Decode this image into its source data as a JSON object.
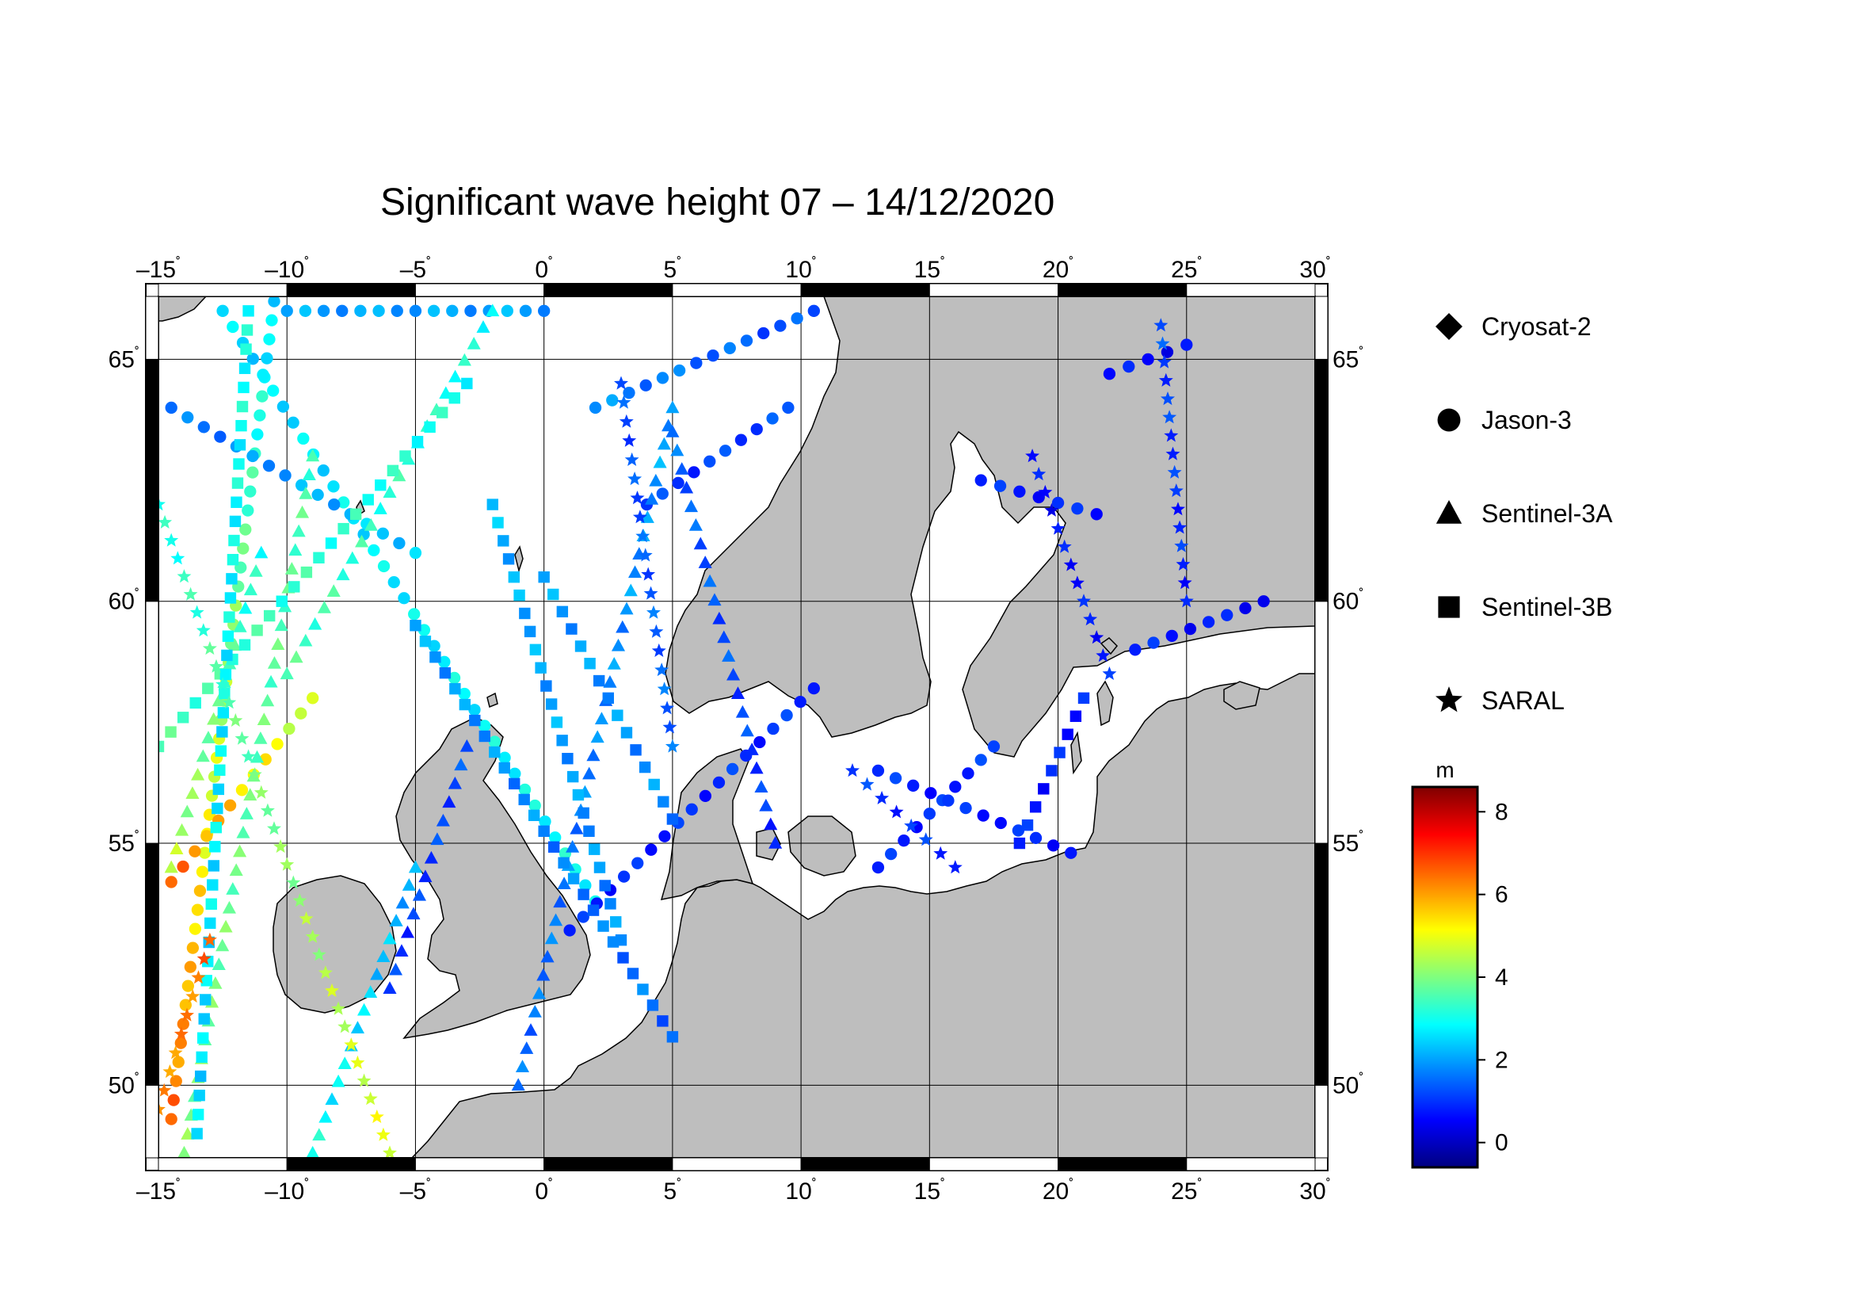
{
  "title": "Significant wave height 07 – 14/12/2020",
  "map": {
    "lon_range": [
      -15,
      30
    ],
    "lat_range": [
      48.5,
      66.3
    ],
    "lon_ticks": [
      {
        "value": -15,
        "label": "–15"
      },
      {
        "value": -10,
        "label": "–10"
      },
      {
        "value": -5,
        "label": "–5"
      },
      {
        "value": 0,
        "label": "0"
      },
      {
        "value": 5,
        "label": "5"
      },
      {
        "value": 10,
        "label": "10"
      },
      {
        "value": 15,
        "label": "15"
      },
      {
        "value": 20,
        "label": "20"
      },
      {
        "value": 25,
        "label": "25"
      },
      {
        "value": 30,
        "label": "30"
      }
    ],
    "lat_ticks": [
      {
        "value": 50,
        "label": "50"
      },
      {
        "value": 55,
        "label": "55"
      },
      {
        "value": 60,
        "label": "60"
      },
      {
        "value": 65,
        "label": "65"
      }
    ],
    "degree_symbol": "˚",
    "grid": true,
    "colors": {
      "land": "#bebebe",
      "sea": "#ffffff",
      "coast": "#000000",
      "frame": "#000000"
    }
  },
  "legend": {
    "items": [
      {
        "label": "Cryosat-2",
        "symbol": "diamond"
      },
      {
        "label": "Jason-3",
        "symbol": "circle"
      },
      {
        "label": "Sentinel-3A",
        "symbol": "triangle"
      },
      {
        "label": "Sentinel-3B",
        "symbol": "square"
      },
      {
        "label": "SARAL",
        "symbol": "star"
      }
    ]
  },
  "colorbar": {
    "unit": "m",
    "min": -0.6,
    "max": 8.6,
    "ticks": [
      {
        "value": 0,
        "label": "0"
      },
      {
        "value": 2,
        "label": "2"
      },
      {
        "value": 4,
        "label": "4"
      },
      {
        "value": 6,
        "label": "6"
      },
      {
        "value": 8,
        "label": "8"
      }
    ],
    "stops": [
      "#00007f",
      "#0000ff",
      "#007fff",
      "#00ffff",
      "#7fff7f",
      "#ffff00",
      "#ff7f00",
      "#ff0000",
      "#7f0000"
    ]
  },
  "tracks": [
    {
      "satellite": "Jason-3",
      "start": [
        -14.5,
        49.3
      ],
      "end": [
        -10.5,
        66.2
      ],
      "hs_start": 6.5,
      "hs_end": 2.5
    },
    {
      "satellite": "Jason-3",
      "start": [
        -14.5,
        54.2
      ],
      "end": [
        -9.0,
        58.0
      ],
      "hs_start": 6.5,
      "hs_end": 4.5
    },
    {
      "satellite": "Jason-3",
      "start": [
        -12.5,
        66.0
      ],
      "end": [
        2.0,
        53.8
      ],
      "hs_start": 2.5,
      "hs_end": 3.0
    },
    {
      "satellite": "Jason-3",
      "start": [
        -14.5,
        64.0
      ],
      "end": [
        -5.0,
        61.0
      ],
      "hs_start": 1.5,
      "hs_end": 2.5
    },
    {
      "satellite": "Jason-3",
      "start": [
        -10.0,
        66.0
      ],
      "end": [
        0.0,
        66.0
      ],
      "hs_start": 2.0,
      "hs_end": 2.0
    },
    {
      "satellite": "Jason-3",
      "start": [
        1.0,
        53.2
      ],
      "end": [
        10.5,
        58.2
      ],
      "hs_start": 0.8,
      "hs_end": 1.0
    },
    {
      "satellite": "Jason-3",
      "start": [
        2.0,
        64.0
      ],
      "end": [
        10.5,
        66.0
      ],
      "hs_start": 1.8,
      "hs_end": 1.2
    },
    {
      "satellite": "Jason-3",
      "start": [
        4.0,
        62.0
      ],
      "end": [
        9.5,
        64.0
      ],
      "hs_start": 1.0,
      "hs_end": 1.2
    },
    {
      "satellite": "Jason-3",
      "start": [
        17.0,
        62.5
      ],
      "end": [
        21.5,
        61.8
      ],
      "hs_start": 0.8,
      "hs_end": 0.8
    },
    {
      "satellite": "Jason-3",
      "start": [
        22.0,
        64.7
      ],
      "end": [
        25.0,
        65.3
      ],
      "hs_start": 0.6,
      "hs_end": 0.6
    },
    {
      "satellite": "Jason-3",
      "start": [
        23.0,
        59.0
      ],
      "end": [
        28.0,
        60.0
      ],
      "hs_start": 0.8,
      "hs_end": 0.6
    },
    {
      "satellite": "Jason-3",
      "start": [
        13.0,
        54.5
      ],
      "end": [
        17.5,
        57.0
      ],
      "hs_start": 0.8,
      "hs_end": 1.0
    },
    {
      "satellite": "Jason-3",
      "start": [
        13.0,
        56.5
      ],
      "end": [
        20.5,
        54.8
      ],
      "hs_start": 0.9,
      "hs_end": 0.8
    },
    {
      "satellite": "Sentinel-3A",
      "start": [
        -14.5,
        54.5
      ],
      "end": [
        -11.0,
        61.0
      ],
      "hs_start": 4.5,
      "hs_end": 3.0
    },
    {
      "satellite": "Sentinel-3A",
      "start": [
        -14.0,
        48.6
      ],
      "end": [
        -9.0,
        63.0
      ],
      "hs_start": 4.0,
      "hs_end": 3.5
    },
    {
      "satellite": "Sentinel-3A",
      "start": [
        -10.0,
        58.5
      ],
      "end": [
        -2.0,
        66.0
      ],
      "hs_start": 3.5,
      "hs_end": 3.0
    },
    {
      "satellite": "Sentinel-3A",
      "start": [
        -6.0,
        52.0
      ],
      "end": [
        -3.0,
        57.0
      ],
      "hs_start": 1.0,
      "hs_end": 1.2
    },
    {
      "satellite": "Sentinel-3A",
      "start": [
        -1.0,
        50.0
      ],
      "end": [
        5.0,
        64.0
      ],
      "hs_start": 1.5,
      "hs_end": 2.0
    },
    {
      "satellite": "Sentinel-3A",
      "start": [
        5.0,
        63.5
      ],
      "end": [
        9.0,
        55.0
      ],
      "hs_start": 1.5,
      "hs_end": 1.0
    },
    {
      "satellite": "Sentinel-3A",
      "start": [
        -9.0,
        48.6
      ],
      "end": [
        -5.0,
        54.5
      ],
      "hs_start": 3.0,
      "hs_end": 2.0
    },
    {
      "satellite": "Sentinel-3B",
      "start": [
        -15.0,
        57.0
      ],
      "end": [
        -3.0,
        64.5
      ],
      "hs_start": 3.5,
      "hs_end": 3.0
    },
    {
      "satellite": "Sentinel-3B",
      "start": [
        -13.5,
        49.0
      ],
      "end": [
        -11.5,
        66.0
      ],
      "hs_start": 2.5,
      "hs_end": 3.0
    },
    {
      "satellite": "Sentinel-3B",
      "start": [
        -5.0,
        59.5
      ],
      "end": [
        5.0,
        51.0
      ],
      "hs_start": 2.0,
      "hs_end": 1.5
    },
    {
      "satellite": "Sentinel-3B",
      "start": [
        0.0,
        60.5
      ],
      "end": [
        5.0,
        55.5
      ],
      "hs_start": 2.0,
      "hs_end": 1.8
    },
    {
      "satellite": "Sentinel-3B",
      "start": [
        3.0,
        53.0
      ],
      "end": [
        -2.0,
        62.0
      ],
      "hs_start": 1.8,
      "hs_end": 2.2
    },
    {
      "satellite": "Sentinel-3B",
      "start": [
        18.5,
        55.0
      ],
      "end": [
        21.0,
        58.0
      ],
      "hs_start": 0.8,
      "hs_end": 0.8
    },
    {
      "satellite": "SARAL",
      "start": [
        -15.0,
        62.0
      ],
      "end": [
        -6.0,
        48.6
      ],
      "hs_start": 3.0,
      "hs_end": 5.0
    },
    {
      "satellite": "SARAL",
      "start": [
        -13.0,
        53.0
      ],
      "end": [
        -15.0,
        49.5
      ],
      "hs_start": 6.5,
      "hs_end": 6.0
    },
    {
      "satellite": "SARAL",
      "start": [
        3.0,
        64.5
      ],
      "end": [
        5.0,
        57.0
      ],
      "hs_start": 1.2,
      "hs_end": 1.5
    },
    {
      "satellite": "SARAL",
      "start": [
        12.0,
        56.5
      ],
      "end": [
        16.0,
        54.5
      ],
      "hs_start": 1.0,
      "hs_end": 1.0
    },
    {
      "satellite": "SARAL",
      "start": [
        19.0,
        63.0
      ],
      "end": [
        22.0,
        58.5
      ],
      "hs_start": 0.6,
      "hs_end": 0.8
    },
    {
      "satellite": "SARAL",
      "start": [
        24.0,
        65.7
      ],
      "end": [
        25.0,
        60.0
      ],
      "hs_start": 1.2,
      "hs_end": 0.8
    }
  ]
}
